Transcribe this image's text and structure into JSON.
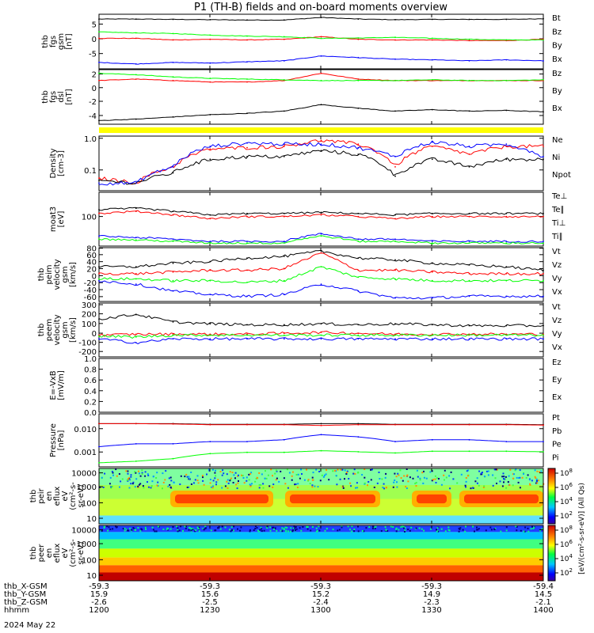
{
  "title": "P1 (TH-B) fields and on-board moments overview",
  "x_ticks": [
    "1200",
    "1230",
    "1300",
    "1330",
    "1400"
  ],
  "coords": [
    {
      "label": "thb_X-GSM",
      "values": [
        "-59.3",
        "-59.3",
        "-59.3",
        "-59.3",
        "-59.4"
      ]
    },
    {
      "label": "thb_Y-GSM",
      "values": [
        "15.9",
        "15.6",
        "15.2",
        "14.9",
        "14.5"
      ]
    },
    {
      "label": "thb_Z-GSM",
      "values": [
        "-2.6",
        "-2.5",
        "-2.4",
        "-2.3",
        "-2.1"
      ]
    },
    {
      "label": "hhmm",
      "values": [
        "1200",
        "1230",
        "1300",
        "1330",
        "1400"
      ]
    }
  ],
  "date_label": "2024 May 22",
  "colorbar_label": "[eV/(cm²-s-sr-eV)] (All Qs)",
  "colors": {
    "black": "#000000",
    "red": "#ff0000",
    "green": "#00ff00",
    "blue": "#0000ff",
    "yellow": "#ffff00"
  },
  "panels": [
    {
      "id": "fgs",
      "ylabel": [
        "thb",
        "fgs",
        "gsm",
        "[nT]"
      ],
      "yticks": [
        "5",
        "0",
        "-5"
      ],
      "yrange": [
        -8,
        9
      ],
      "legend": [
        {
          "text": "Bt",
          "color": "black"
        },
        {
          "text": "Bz",
          "color": "red"
        },
        {
          "text": "By",
          "color": "green"
        },
        {
          "text": "Bx",
          "color": "blue"
        }
      ]
    },
    {
      "id": "fgl",
      "ylabel": [
        "thb",
        "fgs",
        "dsl",
        "[nT]"
      ],
      "yticks": [
        "2",
        "0",
        "-2",
        "-4"
      ],
      "yrange": [
        -5,
        2.5
      ],
      "legend": [
        {
          "text": "Bz",
          "color": "red"
        },
        {
          "text": "By",
          "color": "green"
        },
        {
          "text": "Bx",
          "color": "black"
        }
      ]
    },
    {
      "id": "dens",
      "ylabel": [
        "Density",
        "[cm-3]"
      ],
      "yticks": [
        "1.0",
        "0.1"
      ],
      "yrange": [
        0.03,
        1.2
      ],
      "log": true,
      "legend": [
        {
          "text": "Ne",
          "color": "red"
        },
        {
          "text": "Ni",
          "color": "black"
        },
        {
          "text": "Npot",
          "color": "blue"
        }
      ]
    },
    {
      "id": "temp",
      "ylabel": [
        "moat3",
        "[eV]"
      ],
      "yticks": [
        "100"
      ],
      "yrange": [
        8,
        10000
      ],
      "log": true,
      "legend": [
        {
          "text": "Te⊥",
          "color": "red"
        },
        {
          "text": "Te∥",
          "color": "black"
        },
        {
          "text": "Ti⊥",
          "color": "blue"
        },
        {
          "text": "Ti∥",
          "color": "green"
        }
      ]
    },
    {
      "id": "vi",
      "ylabel": [
        "thb",
        "peim",
        "velocity",
        "gsm",
        "[km/s]"
      ],
      "yticks": [
        "80",
        "60",
        "40",
        "20",
        "0",
        "-20",
        "-40",
        "-60"
      ],
      "yrange": [
        -70,
        85
      ],
      "legend": [
        {
          "text": "Vt",
          "color": "black"
        },
        {
          "text": "Vz",
          "color": "red"
        },
        {
          "text": "Vy",
          "color": "green"
        },
        {
          "text": "Vx",
          "color": "blue"
        }
      ]
    },
    {
      "id": "ve",
      "ylabel": [
        "thb",
        "peem",
        "velocity",
        "gsm",
        "[km/s]"
      ],
      "yticks": [
        "300",
        "200",
        "100",
        "0",
        "-100",
        "-200"
      ],
      "yrange": [
        -250,
        320
      ],
      "legend": [
        {
          "text": "Vt",
          "color": "black"
        },
        {
          "text": "Vz",
          "color": "red"
        },
        {
          "text": "Vy",
          "color": "green"
        },
        {
          "text": "Vx",
          "color": "blue"
        }
      ]
    },
    {
      "id": "efield",
      "ylabel": [
        "E=-VxB",
        "[mV/m]"
      ],
      "yticks": [
        "1.0",
        "0.8",
        "0.6",
        "0.4",
        "0.2",
        "0.0"
      ],
      "yrange": [
        0,
        1
      ],
      "legend": [
        {
          "text": "Ez",
          "color": "red"
        },
        {
          "text": "Ey",
          "color": "green"
        },
        {
          "text": "Ex",
          "color": "blue"
        }
      ]
    },
    {
      "id": "press",
      "ylabel": [
        "Pressure",
        "[nPa]"
      ],
      "yticks": [
        "0.010",
        "0.001"
      ],
      "yrange": [
        0.0004,
        0.08
      ],
      "log": true,
      "legend": [
        {
          "text": "Pt",
          "color": "black"
        },
        {
          "text": "Pb",
          "color": "red"
        },
        {
          "text": "Pe",
          "color": "green"
        },
        {
          "text": "Pi",
          "color": "blue"
        }
      ]
    },
    {
      "id": "ispec",
      "ylabel": [
        "thb",
        "peir",
        "en",
        "eflux",
        "eV",
        "(cm²-s-",
        "sr-eV)"
      ],
      "yticks": [
        "10000",
        "1000",
        "100",
        "10"
      ],
      "yrange": [
        5,
        20000
      ],
      "log": true,
      "legend": []
    },
    {
      "id": "espec",
      "ylabel": [
        "thb",
        "peer",
        "en",
        "eflux",
        "eV",
        "(cm²-s-",
        "sr-eV)"
      ],
      "yticks": [
        "10000",
        "1000",
        "100",
        "10"
      ],
      "yrange": [
        5,
        20000
      ],
      "log": true,
      "legend": []
    }
  ],
  "colorbar_ticks": [
    {
      "base": "10",
      "exp": "8"
    },
    {
      "base": "10",
      "exp": "6"
    },
    {
      "base": "10",
      "exp": "4"
    },
    {
      "base": "10",
      "exp": "2"
    },
    {
      "base": "10",
      "exp": "8"
    },
    {
      "base": "10",
      "exp": "6"
    },
    {
      "base": "10",
      "exp": "4"
    },
    {
      "base": "10",
      "exp": "2"
    }
  ],
  "chart_data": {
    "type": "line",
    "title": "P1 (TH-B) fields and on-board moments overview",
    "x_label": "hhmm",
    "x_range": [
      "1200",
      "1400"
    ],
    "x": [
      1200,
      1210,
      1220,
      1230,
      1240,
      1250,
      1300,
      1310,
      1320,
      1330,
      1340,
      1350,
      1400
    ],
    "series": [
      {
        "name": "Bt",
        "panel": "fgs",
        "values": [
          7.5,
          7.5,
          7.4,
          7.3,
          7.2,
          7.2,
          8.0,
          7.5,
          7.3,
          7.4,
          7.4,
          7.4,
          7.6
        ]
      },
      {
        "name": "Bz",
        "panel": "fgs",
        "values": [
          1.5,
          1.5,
          1.0,
          1.2,
          1.0,
          1.2,
          2.0,
          1.2,
          1.0,
          1.0,
          0.8,
          0.8,
          1.2
        ]
      },
      {
        "name": "By",
        "panel": "fgs",
        "values": [
          3.5,
          3.2,
          3.0,
          2.5,
          2.2,
          2.0,
          1.5,
          1.6,
          1.8,
          1.5,
          1.2,
          1.0,
          1.0
        ]
      },
      {
        "name": "Bx",
        "panel": "fgs",
        "values": [
          -6.0,
          -6.5,
          -6.0,
          -6.2,
          -5.8,
          -5.5,
          -4.0,
          -4.5,
          -5.0,
          -5.2,
          -5.5,
          -5.2,
          -5.5
        ]
      },
      {
        "name": "Bz",
        "panel": "fgl",
        "values": [
          1.0,
          1.2,
          1.0,
          0.8,
          0.8,
          1.0,
          2.0,
          1.2,
          1.0,
          1.0,
          1.0,
          1.0,
          1.0
        ]
      },
      {
        "name": "By",
        "panel": "fgl",
        "values": [
          2.0,
          1.8,
          1.5,
          1.3,
          1.2,
          1.1,
          1.0,
          1.0,
          1.0,
          1.1,
          1.0,
          1.0,
          1.1
        ]
      },
      {
        "name": "Bx",
        "panel": "fgl",
        "values": [
          -4.5,
          -4.3,
          -4.0,
          -3.7,
          -3.5,
          -3.2,
          -2.3,
          -2.8,
          -3.2,
          -3.0,
          -3.2,
          -3.1,
          -3.3
        ]
      },
      {
        "name": "Ne",
        "panel": "dens",
        "values": [
          0.07,
          0.05,
          0.15,
          0.5,
          0.55,
          0.6,
          0.9,
          0.7,
          0.15,
          0.6,
          0.35,
          0.6,
          0.6
        ]
      },
      {
        "name": "Ni",
        "panel": "dens",
        "values": [
          0.06,
          0.05,
          0.1,
          0.25,
          0.3,
          0.3,
          0.45,
          0.35,
          0.08,
          0.25,
          0.15,
          0.25,
          0.25
        ]
      },
      {
        "name": "Npot",
        "panel": "dens",
        "values": [
          0.05,
          0.05,
          0.15,
          0.6,
          0.75,
          0.7,
          0.7,
          0.55,
          0.3,
          0.8,
          0.6,
          0.7,
          0.3
        ]
      },
      {
        "name": "Te⊥",
        "panel": "temp",
        "values": [
          600,
          800,
          500,
          300,
          400,
          400,
          500,
          400,
          300,
          400,
          400,
          400,
          400
        ]
      },
      {
        "name": "Te∥",
        "panel": "temp",
        "values": [
          1000,
          1200,
          800,
          500,
          600,
          600,
          700,
          600,
          500,
          600,
          600,
          600,
          600
        ]
      },
      {
        "name": "Ti⊥",
        "panel": "temp",
        "values": [
          30,
          25,
          20,
          15,
          15,
          15,
          40,
          20,
          20,
          15,
          15,
          15,
          15
        ]
      },
      {
        "name": "Ti∥",
        "panel": "temp",
        "values": [
          20,
          18,
          15,
          12,
          12,
          12,
          30,
          15,
          15,
          12,
          12,
          12,
          12
        ]
      },
      {
        "name": "Vt",
        "panel": "vi",
        "values": [
          30,
          30,
          40,
          45,
          55,
          60,
          75,
          55,
          50,
          40,
          35,
          30,
          20
        ]
      },
      {
        "name": "Vz",
        "panel": "vi",
        "values": [
          10,
          10,
          15,
          20,
          20,
          25,
          70,
          20,
          20,
          15,
          10,
          10,
          10
        ]
      },
      {
        "name": "Vy",
        "panel": "vi",
        "values": [
          -5,
          -5,
          -10,
          -10,
          -15,
          -10,
          30,
          0,
          -5,
          -10,
          -10,
          -10,
          -10
        ]
      },
      {
        "name": "Vx",
        "panel": "vi",
        "values": [
          -10,
          -20,
          -40,
          -50,
          -55,
          -50,
          -20,
          -40,
          -60,
          -60,
          -55,
          -55,
          -55
        ]
      },
      {
        "name": "Vt",
        "panel": "ve",
        "values": [
          150,
          200,
          120,
          100,
          90,
          90,
          100,
          90,
          100,
          90,
          80,
          80,
          80
        ]
      },
      {
        "name": "Vz",
        "panel": "ve",
        "values": [
          -20,
          -10,
          -10,
          -10,
          -10,
          0,
          10,
          0,
          -10,
          -10,
          -10,
          -10,
          -10
        ]
      },
      {
        "name": "Vy",
        "panel": "ve",
        "values": [
          -30,
          -40,
          -20,
          -20,
          -20,
          -20,
          -20,
          -20,
          -20,
          -20,
          -20,
          -20,
          -20
        ]
      },
      {
        "name": "Vx",
        "panel": "ve",
        "values": [
          -60,
          -100,
          -60,
          -60,
          -60,
          -60,
          -60,
          -60,
          -60,
          -60,
          -60,
          -60,
          -60
        ]
      },
      {
        "name": "Pt",
        "panel": "press",
        "values": [
          0.03,
          0.03,
          0.03,
          0.028,
          0.028,
          0.028,
          0.03,
          0.03,
          0.028,
          0.028,
          0.028,
          0.028,
          0.027
        ]
      },
      {
        "name": "Pb",
        "panel": "press",
        "values": [
          0.03,
          0.03,
          0.029,
          0.027,
          0.027,
          0.027,
          0.025,
          0.027,
          0.027,
          0.027,
          0.027,
          0.027,
          0.026
        ]
      },
      {
        "name": "Pe",
        "panel": "press",
        "values": [
          0.0006,
          0.0007,
          0.0009,
          0.0015,
          0.0017,
          0.0017,
          0.002,
          0.0018,
          0.0016,
          0.0019,
          0.0019,
          0.0019,
          0.0018
        ]
      },
      {
        "name": "Pi",
        "panel": "press",
        "values": [
          0.003,
          0.004,
          0.004,
          0.005,
          0.005,
          0.006,
          0.01,
          0.008,
          0.005,
          0.006,
          0.006,
          0.005,
          0.005
        ]
      }
    ]
  }
}
